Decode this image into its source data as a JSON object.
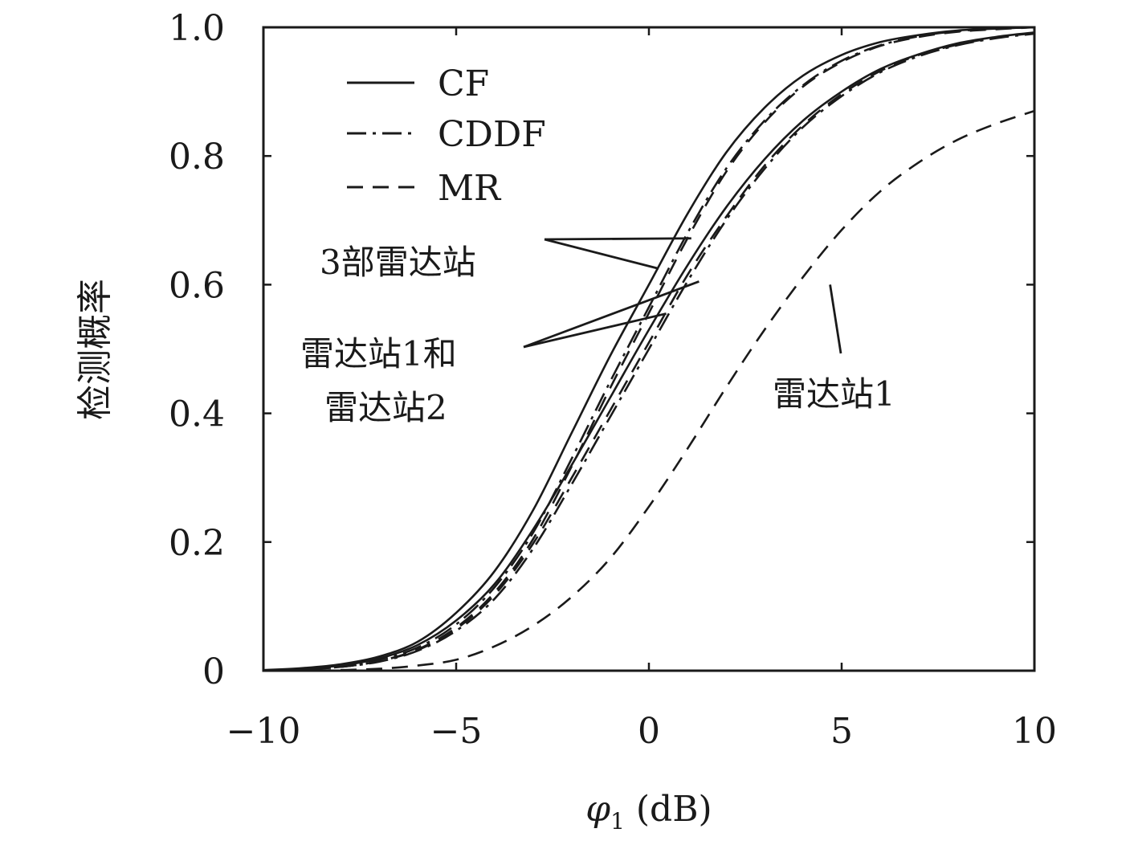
{
  "chart_data": {
    "type": "line",
    "title": "",
    "xlabel": "φ1 (dB)",
    "xlabel_symbol": "φ",
    "xlabel_subscript": "1",
    "xlabel_unit": "(dB)",
    "ylabel": "检测概率",
    "xlim": [
      -10,
      10
    ],
    "ylim": [
      0,
      1
    ],
    "grid": false,
    "legend_position": "top-left",
    "x_ticks": [
      -10,
      -5,
      0,
      5,
      10
    ],
    "x_tick_labels": [
      "−10",
      "−5",
      "0",
      "5",
      "10"
    ],
    "y_ticks": [
      0,
      0.2,
      0.4,
      0.6,
      0.8,
      1.0
    ],
    "y_tick_labels": [
      "0",
      "0.2",
      "0.4",
      "0.6",
      "0.8",
      "1.0"
    ],
    "legend": [
      {
        "label": "CF",
        "style": "solid"
      },
      {
        "label": "CDDF",
        "style": "dashdot"
      },
      {
        "label": "MR",
        "style": "dashed"
      }
    ],
    "series": [
      {
        "legend": "CF",
        "group": "3部雷达站",
        "style": "solid",
        "x": [
          -10,
          -9,
          -8,
          -7,
          -6,
          -5,
          -4,
          -3,
          -2,
          -1,
          0,
          1,
          2,
          3,
          4,
          5,
          6,
          7,
          8,
          9,
          10
        ],
        "values": [
          0.001,
          0.004,
          0.01,
          0.022,
          0.045,
          0.09,
          0.155,
          0.25,
          0.37,
          0.49,
          0.6,
          0.71,
          0.805,
          0.875,
          0.925,
          0.957,
          0.977,
          0.988,
          0.995,
          0.998,
          1.0
        ]
      },
      {
        "legend": "CDDF",
        "group": "3部雷达站",
        "style": "dashdot",
        "x": [
          -10,
          -9,
          -8,
          -7,
          -6,
          -5,
          -4,
          -3,
          -2,
          -1,
          0,
          1,
          2,
          3,
          4,
          5,
          6,
          7,
          8,
          9,
          10
        ],
        "values": [
          0.0,
          0.002,
          0.007,
          0.017,
          0.036,
          0.072,
          0.13,
          0.215,
          0.33,
          0.45,
          0.565,
          0.68,
          0.78,
          0.855,
          0.91,
          0.948,
          0.972,
          0.986,
          0.994,
          0.998,
          1.0
        ]
      },
      {
        "legend": "MR",
        "group": "3部雷达站",
        "style": "dashed",
        "x": [
          -10,
          -9,
          -8,
          -7,
          -6,
          -5,
          -4,
          -3,
          -2,
          -1,
          0,
          1,
          2,
          3,
          4,
          5,
          6,
          7,
          8,
          9,
          10
        ],
        "values": [
          0.0,
          0.002,
          0.006,
          0.015,
          0.033,
          0.067,
          0.122,
          0.205,
          0.318,
          0.44,
          0.556,
          0.672,
          0.775,
          0.852,
          0.908,
          0.946,
          0.971,
          0.985,
          0.993,
          0.997,
          1.0
        ]
      },
      {
        "legend": "CF",
        "group": "雷达站1和雷达站2",
        "style": "solid",
        "x": [
          -10,
          -9,
          -8,
          -7,
          -6,
          -5,
          -4,
          -3,
          -2,
          -1,
          0,
          1,
          2,
          3,
          4,
          5,
          6,
          7,
          8,
          9,
          10
        ],
        "values": [
          0.0,
          0.003,
          0.008,
          0.019,
          0.04,
          0.078,
          0.135,
          0.22,
          0.32,
          0.425,
          0.53,
          0.63,
          0.72,
          0.795,
          0.855,
          0.9,
          0.935,
          0.958,
          0.975,
          0.985,
          0.992
        ]
      },
      {
        "legend": "CDDF",
        "group": "雷达站1和雷达站2",
        "style": "dashdot",
        "x": [
          -10,
          -9,
          -8,
          -7,
          -6,
          -5,
          -4,
          -3,
          -2,
          -1,
          0,
          1,
          2,
          3,
          4,
          5,
          6,
          7,
          8,
          9,
          10
        ],
        "values": [
          0.0,
          0.002,
          0.006,
          0.014,
          0.031,
          0.062,
          0.112,
          0.19,
          0.29,
          0.395,
          0.5,
          0.605,
          0.7,
          0.78,
          0.845,
          0.893,
          0.93,
          0.955,
          0.972,
          0.983,
          0.99
        ]
      },
      {
        "legend": "MR",
        "group": "雷达站1和雷达站2",
        "style": "dashed",
        "x": [
          -10,
          -9,
          -8,
          -7,
          -6,
          -5,
          -4,
          -3,
          -2,
          -1,
          0,
          1,
          2,
          3,
          4,
          5,
          6,
          7,
          8,
          9,
          10
        ],
        "values": [
          0.0,
          0.002,
          0.006,
          0.015,
          0.032,
          0.065,
          0.118,
          0.198,
          0.3,
          0.405,
          0.51,
          0.615,
          0.705,
          0.785,
          0.848,
          0.896,
          0.932,
          0.957,
          0.973,
          0.984,
          0.991
        ]
      },
      {
        "legend": "MR",
        "group": "雷达站1",
        "style": "dashed",
        "x": [
          -10,
          -9,
          -8,
          -7,
          -6,
          -5,
          -4,
          -3,
          -2,
          -1,
          0,
          1,
          2,
          3,
          4,
          5,
          6,
          7,
          8,
          9,
          10
        ],
        "values": [
          0.0,
          0.0,
          0.001,
          0.003,
          0.008,
          0.017,
          0.038,
          0.07,
          0.115,
          0.175,
          0.255,
          0.345,
          0.44,
          0.53,
          0.612,
          0.685,
          0.745,
          0.79,
          0.825,
          0.85,
          0.87
        ]
      }
    ],
    "annotations": [
      {
        "text": "3部雷达站",
        "lines": [
          "3部雷达站"
        ],
        "points": [
          [
            1.1,
            0.672
          ],
          [
            0.25,
            0.625
          ]
        ]
      },
      {
        "text": "雷达站1和雷达站2",
        "lines": [
          "雷达站1和",
          "雷达站2"
        ],
        "points": [
          [
            1.3,
            0.605
          ],
          [
            0.45,
            0.555
          ]
        ]
      },
      {
        "text": "雷达站1",
        "lines": [
          "雷达站1"
        ],
        "points": [
          [
            4.7,
            0.6
          ]
        ]
      }
    ]
  }
}
